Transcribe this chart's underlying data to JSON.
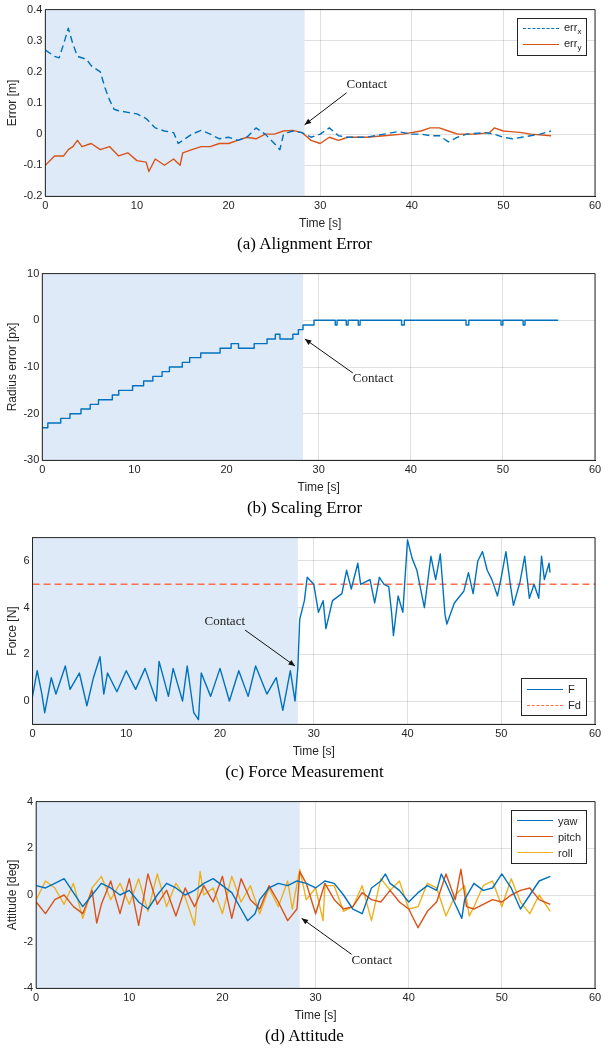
{
  "chart_data": [
    {
      "type": "line",
      "title": "(a) Alignment Error",
      "xlabel": "Time [s]",
      "ylabel": "Error [m]",
      "xlim": [
        0,
        60
      ],
      "xticks": [
        0,
        10,
        20,
        30,
        40,
        50,
        60
      ],
      "ylim": [
        -0.2,
        0.4
      ],
      "yticks": [
        -0.2,
        -0.1,
        0,
        0.1,
        0.2,
        0.3,
        0.4
      ],
      "grid": true,
      "legend": "top right",
      "bands": [
        {
          "axis": "x",
          "from": 0,
          "to": 28.3,
          "color": "#dfeaf8"
        }
      ],
      "annotations": [
        {
          "text": "Contact",
          "x": 28.3,
          "y": 0.03
        }
      ],
      "series": [
        {
          "name": "err$_{x}$",
          "color": "#0072bd",
          "line_style": "dashed",
          "x": [
            0,
            1,
            1.5,
            2,
            2.5,
            3,
            3.5,
            4.5,
            5,
            6,
            6.5,
            7,
            7.5,
            8,
            9,
            10,
            11,
            12,
            13,
            14,
            14.5,
            15,
            16,
            17,
            18,
            19,
            20,
            21,
            22,
            23,
            24,
            25,
            25.6,
            26,
            27,
            28,
            29,
            30,
            31,
            32,
            33,
            35,
            37,
            38.5,
            40,
            41,
            42,
            43,
            44,
            45,
            46,
            48,
            49,
            50,
            51,
            52,
            54,
            55.2
          ],
          "values": [
            0.27,
            0.25,
            0.245,
            0.29,
            0.34,
            0.29,
            0.25,
            0.24,
            0.22,
            0.2,
            0.15,
            0.11,
            0.08,
            0.075,
            0.07,
            0.065,
            0.05,
            0.02,
            0.01,
            0.005,
            -0.03,
            -0.02,
            0,
            0.012,
            0,
            -0.015,
            -0.01,
            -0.02,
            -0.01,
            0.02,
            0,
            -0.03,
            -0.05,
            0,
            0.01,
            0.005,
            -0.01,
            0,
            0.02,
            -0.005,
            -0.01,
            -0.01,
            0,
            0.008,
            0,
            0,
            -0.005,
            -0.005,
            -0.025,
            -0.01,
            0,
            0.005,
            0,
            -0.01,
            -0.015,
            -0.01,
            0,
            0.01
          ]
        },
        {
          "name": "err$_{y}$",
          "color": "#d95319",
          "line_style": "solid",
          "x": [
            0,
            1,
            2,
            2.5,
            3,
            3.5,
            4,
            5,
            6,
            7,
            8,
            9,
            10,
            11,
            11.3,
            12,
            13,
            14,
            14.7,
            15,
            16,
            17,
            18,
            19,
            20,
            21,
            22,
            23,
            24,
            25,
            26,
            27,
            28,
            29,
            30,
            31,
            32,
            33,
            35,
            37,
            39,
            41,
            42,
            43,
            44,
            45,
            47,
            48.5,
            49,
            50,
            52,
            53,
            55.2
          ],
          "values": [
            -0.1,
            -0.07,
            -0.07,
            -0.05,
            -0.04,
            -0.02,
            -0.04,
            -0.03,
            -0.05,
            -0.04,
            -0.07,
            -0.06,
            -0.085,
            -0.09,
            -0.12,
            -0.08,
            -0.1,
            -0.08,
            -0.1,
            -0.06,
            -0.05,
            -0.04,
            -0.04,
            -0.03,
            -0.03,
            -0.02,
            -0.01,
            -0.015,
            0,
            0,
            0.01,
            0.012,
            0.005,
            -0.02,
            -0.03,
            -0.01,
            -0.02,
            -0.01,
            -0.01,
            -0.005,
            0,
            0.01,
            0.02,
            0.02,
            0.01,
            0,
            0,
            0.005,
            0.02,
            0.01,
            0.005,
            0,
            -0.005
          ]
        }
      ]
    },
    {
      "type": "step",
      "title": "(b) Scaling Error",
      "xlabel": "Time [s]",
      "ylabel": "Radius error [px]",
      "xlim": [
        0,
        60
      ],
      "xticks": [
        0,
        10,
        20,
        30,
        40,
        50,
        60
      ],
      "ylim": [
        -30,
        10
      ],
      "yticks": [
        -30,
        -20,
        -10,
        0,
        10
      ],
      "grid": true,
      "bands": [
        {
          "axis": "x",
          "from": 0,
          "to": 28.3,
          "color": "#dfeaf8"
        }
      ],
      "annotations": [
        {
          "text": "Contact",
          "x": 28.5,
          "y": -4
        }
      ],
      "series": [
        {
          "color": "#0072bd",
          "x": [
            0,
            0.6,
            2,
            3,
            4.2,
            5.2,
            6.1,
            7.6,
            8.3,
            9.8,
            11,
            12,
            13,
            13.8,
            15.2,
            16,
            17.2,
            19.3,
            20.5,
            21.3,
            23,
            24.4,
            25.3,
            25.8,
            27.2,
            27.8,
            28.3,
            29.5,
            31.8,
            32,
            33,
            33.2,
            34.3,
            34.5,
            39,
            39.3,
            46,
            46.3,
            49.8,
            50,
            52.2,
            52.4,
            56
          ],
          "values": [
            -23,
            -22,
            -21,
            -20,
            -19,
            -18,
            -17,
            -16,
            -15,
            -14,
            -13,
            -12,
            -11,
            -10,
            -9,
            -8,
            -7,
            -6,
            -5,
            -6,
            -5,
            -4,
            -3,
            -4,
            -3,
            -2,
            -1,
            0,
            -1,
            0,
            -1,
            0,
            -1,
            0,
            -1,
            0,
            -1,
            0,
            -1,
            0,
            -1,
            0,
            0
          ]
        }
      ]
    },
    {
      "type": "line",
      "title": "(c) Force Measurement",
      "xlabel": "Time [s]",
      "ylabel": "Force [N]",
      "xlim": [
        0,
        60
      ],
      "xticks": [
        0,
        10,
        20,
        30,
        40,
        50,
        60
      ],
      "ylim": [
        -1,
        7
      ],
      "yticks": [
        0,
        2,
        4,
        6
      ],
      "grid": true,
      "legend": "bottom right",
      "bands": [
        {
          "axis": "x",
          "from": 0,
          "to": 28.3,
          "color": "#dfeaf8"
        }
      ],
      "annotations": [
        {
          "text": "Contact",
          "x": 28,
          "y": 1.5
        }
      ],
      "series": [
        {
          "name": "F",
          "color": "#0072bd",
          "line_style": "solid",
          "x": [
            0,
            0.5,
            1,
            1.3,
            2,
            2.5,
            3,
            3.5,
            4,
            5,
            5.8,
            6.5,
            7.2,
            7.6,
            8,
            9,
            10,
            11,
            12,
            13.2,
            13.5,
            14.5,
            15,
            16,
            16.5,
            17.2,
            17.7,
            18,
            19,
            20,
            21,
            22,
            23,
            23.8,
            25,
            26,
            26.7,
            27.5,
            28,
            28.3,
            28.5,
            29,
            29.3,
            30,
            30.5,
            31,
            31.3,
            32,
            33,
            33.5,
            34,
            34.7,
            35,
            36,
            36.5,
            37,
            37.5,
            38,
            38.3,
            38.5,
            39,
            39.5,
            40,
            40.5,
            41,
            41.8,
            42.5,
            43,
            43.5,
            44,
            44.2,
            45,
            46,
            46.5,
            47,
            47.5,
            48,
            48.5,
            49,
            49.6,
            50,
            50.5,
            51,
            51.3,
            52,
            52.5,
            53,
            53.5,
            54,
            54.3,
            54.6,
            55.1,
            55.2
          ],
          "values": [
            0.2,
            1.3,
            0.3,
            -0.5,
            1,
            0.3,
            0.9,
            1.5,
            0.5,
            1.2,
            -0.2,
            1,
            1.9,
            0.3,
            1.2,
            0.4,
            1.3,
            0.5,
            1.4,
            0,
            1.7,
            0.2,
            1.4,
            0,
            1.5,
            -0.5,
            -0.8,
            1.2,
            0.2,
            1.4,
            0,
            1.3,
            0.2,
            1.5,
            0.3,
            1,
            -0.4,
            1.3,
            0,
            1.4,
            3.5,
            4.3,
            5.3,
            5,
            3.8,
            4.3,
            3.1,
            4.3,
            4.6,
            5.6,
            4.8,
            5.9,
            5,
            5.2,
            4.2,
            5.3,
            5,
            4.9,
            3.8,
            2.8,
            4.5,
            3.8,
            6.9,
            6.1,
            5.6,
            4,
            6.2,
            5.2,
            6.3,
            3.7,
            3.3,
            4.2,
            4.7,
            5.5,
            4.6,
            6,
            6.4,
            5.6,
            5.2,
            4.5,
            5.3,
            6.4,
            4.9,
            4.1,
            5.1,
            6.2,
            4.4,
            5,
            4.4,
            6.2,
            5.2,
            5.9,
            5.5
          ]
        },
        {
          "name": "Fd",
          "color": "#ff6d4d",
          "line_style": "dashed",
          "x": [
            0,
            60
          ],
          "values": [
            5,
            5
          ]
        }
      ]
    },
    {
      "type": "line",
      "title": "(d) Attitude",
      "xlabel": "Time [s]",
      "ylabel": "Attitude [deg]",
      "xlim": [
        0,
        60
      ],
      "xticks": [
        0,
        10,
        20,
        30,
        40,
        50,
        60
      ],
      "ylim": [
        -4,
        4
      ],
      "yticks": [
        -4,
        -2,
        0,
        2,
        4
      ],
      "grid": true,
      "legend": "top right",
      "bands": [
        {
          "axis": "x",
          "from": 0,
          "to": 28.3,
          "color": "#dfeaf8"
        }
      ],
      "annotations": [
        {
          "text": "Contact",
          "x": 28.5,
          "y": -1
        }
      ],
      "series": [
        {
          "name": "yaw",
          "color": "#0072bd",
          "line_style": "solid",
          "x": [
            0,
            1,
            2,
            3,
            4,
            5,
            6,
            7,
            8,
            9,
            10,
            11,
            12,
            13,
            14,
            15,
            16,
            17,
            18,
            19,
            20,
            21,
            22,
            22.7,
            23.5,
            24,
            25,
            26,
            27,
            28,
            29,
            30,
            31,
            32,
            33,
            34,
            35,
            36,
            37,
            37.5,
            38,
            39,
            40,
            41,
            42,
            43,
            43.5,
            44,
            45,
            45.7,
            46,
            47,
            48,
            49,
            50,
            51,
            52,
            53,
            54,
            55.2
          ],
          "values": [
            0.4,
            0.3,
            0.5,
            0.7,
            0.1,
            -0.5,
            0,
            0.5,
            0.3,
            0,
            0.2,
            -0.3,
            -0.6,
            0,
            0.5,
            0.3,
            0,
            0.2,
            0.5,
            0.7,
            0.4,
            0.1,
            -0.6,
            -1.1,
            -0.8,
            -0.2,
            0.3,
            0.5,
            0.4,
            0.6,
            0.5,
            0.3,
            0.6,
            0.5,
            0,
            -0.6,
            -0.8,
            0.3,
            0.6,
            0.9,
            0.5,
            0.2,
            -0.3,
            0.1,
            0.4,
            0.2,
            0.9,
            0.5,
            -0.4,
            -1,
            -0.2,
            0.5,
            0.2,
            0.3,
            0.9,
            0.3,
            -0.6,
            0,
            0.6,
            0.8
          ]
        },
        {
          "name": "pitch",
          "color": "#d95319",
          "line_style": "solid",
          "x": [
            0,
            1,
            2,
            3,
            4,
            5,
            6,
            6.5,
            7,
            8,
            9,
            10,
            11,
            12,
            13,
            14,
            15,
            16,
            17,
            18,
            19,
            20,
            21,
            22,
            23,
            24,
            25,
            26,
            27,
            28,
            28.3,
            29,
            30,
            31,
            32,
            33,
            34,
            35,
            36,
            37,
            38,
            39,
            40,
            41,
            42,
            43,
            44,
            45,
            45.6,
            46.2,
            47,
            48,
            49,
            50,
            51,
            52,
            53,
            54,
            55.2
          ],
          "values": [
            -0.3,
            -0.8,
            -0.2,
            0,
            -0.5,
            -0.8,
            0.2,
            -1.2,
            -0.4,
            0.6,
            -0.8,
            0.7,
            -1.3,
            0.9,
            -0.4,
            0.2,
            -0.9,
            0.3,
            -0.5,
            0.4,
            -0.3,
            0.8,
            -1,
            0.7,
            -0.2,
            -0.6,
            0.4,
            -0.3,
            -1.1,
            -0.6,
            1,
            0.5,
            -0.8,
            0.5,
            -0.2,
            -0.6,
            -0.5,
            0.1,
            -0.2,
            -0.3,
            0.2,
            -0.3,
            -0.6,
            -1.4,
            -0.7,
            -0.3,
            0.9,
            -0.2,
            1.1,
            -0.5,
            -0.6,
            -0.4,
            -0.2,
            -0.3,
            0,
            0.2,
            0.3,
            -0.2,
            -0.4
          ]
        },
        {
          "name": "roll",
          "color": "#edb120",
          "line_style": "solid",
          "x": [
            0,
            1,
            2,
            3,
            4,
            5,
            6,
            7,
            8,
            9,
            10,
            11,
            12,
            13,
            14,
            15,
            16,
            17,
            17.6,
            18,
            19,
            20,
            21,
            22,
            23,
            24,
            25,
            26,
            27,
            27.5,
            28.3,
            29,
            30,
            30.8,
            31,
            32,
            33,
            34,
            35,
            36,
            37,
            38,
            39,
            40,
            41,
            42,
            43,
            44,
            45,
            46,
            46.5,
            47,
            48,
            49,
            50,
            51,
            52,
            53,
            54,
            55.2
          ],
          "values": [
            -0.2,
            0.6,
            0.3,
            -0.4,
            0.5,
            -1,
            0.3,
            0.8,
            -0.2,
            0.5,
            -0.4,
            0.7,
            -0.7,
            0.9,
            -0.5,
            0.5,
            -0.1,
            -1.3,
            1,
            0,
            0.3,
            -0.8,
            0.8,
            -0.3,
            0.4,
            -0.8,
            0.3,
            -0.5,
            0.6,
            -0.6,
            1.1,
            -0.2,
            0.3,
            -1.1,
            0.4,
            0.4,
            -0.7,
            -0.5,
            0.4,
            -1.1,
            0.7,
            0.2,
            0.6,
            -0.6,
            -0.5,
            0.5,
            0.3,
            -0.9,
            0,
            0.4,
            -0.9,
            -0.5,
            0.4,
            0.6,
            -0.5,
            0.7,
            -0.3,
            -0.8,
            0,
            -0.7
          ]
        }
      ]
    }
  ]
}
